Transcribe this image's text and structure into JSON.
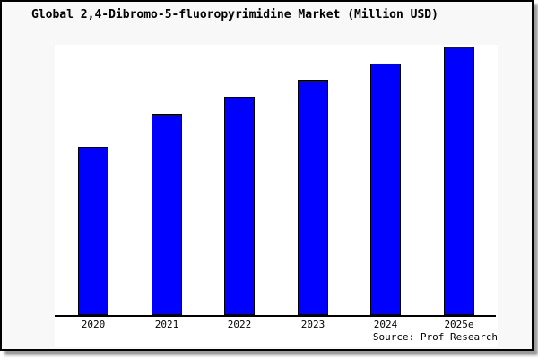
{
  "window": {
    "background_color": "#f8f8f8",
    "border_color": "#000000",
    "plot_background_color": "#ffffff"
  },
  "chart_data": {
    "type": "bar",
    "title": "Global 2,4-Dibromo-5-fluoropyrimidine Market (Million USD)",
    "categories": [
      "2020",
      "2021",
      "2022",
      "2023",
      "2024",
      "2025e"
    ],
    "values": [
      62.8,
      75.1,
      81.4,
      87.7,
      93.7,
      100
    ],
    "values_note": "No y-axis, gridlines or data labels are shown; values are relative bar heights normalized to 2025e = 100",
    "xlabel": "",
    "ylabel": "",
    "ylim": [
      0,
      100
    ],
    "grid": false,
    "legend": false,
    "y_axis_visible": false,
    "bar_color": "#0000ff",
    "bar_border_color": "#000000",
    "source": "Source: Prof Research"
  }
}
